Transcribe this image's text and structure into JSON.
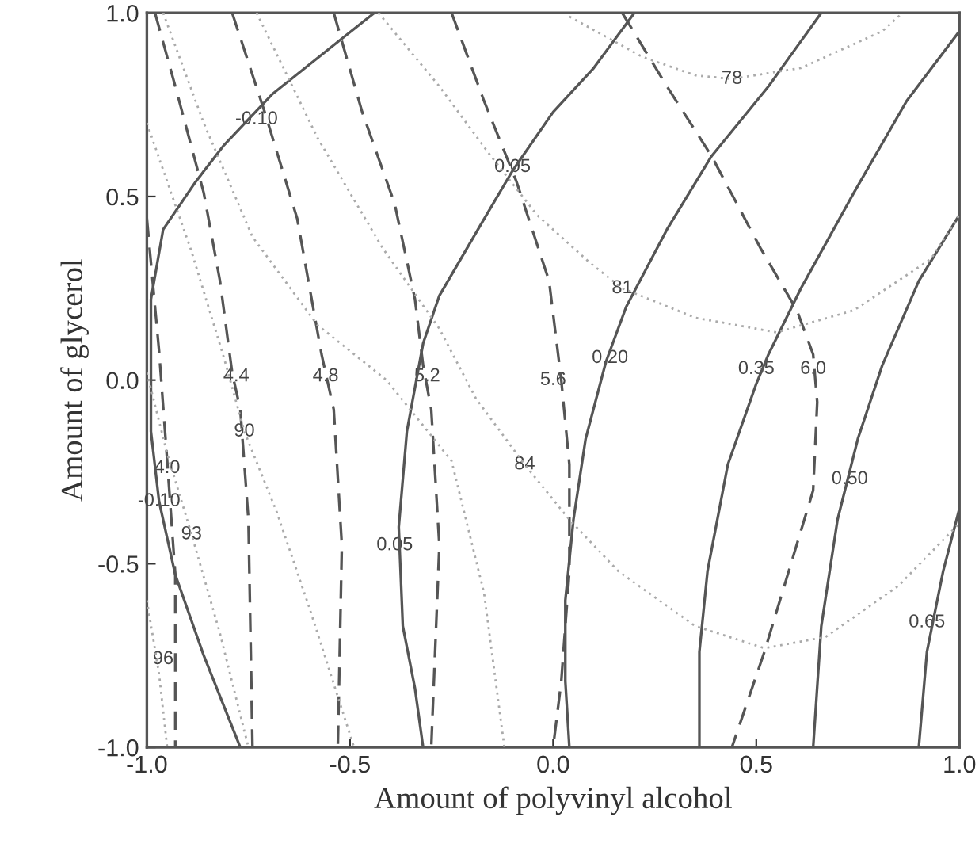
{
  "chart_data": {
    "type": "line",
    "xlabel": "Amount of polyvinyl alcohol",
    "ylabel": "Amount of glycerol",
    "xlim": [
      -1.0,
      1.0
    ],
    "ylim": [
      -1.0,
      1.0
    ],
    "xticks": [
      {
        "value": -1.0,
        "label": "-1.0"
      },
      {
        "value": -0.5,
        "label": "-0.5"
      },
      {
        "value": 0.0,
        "label": "0.0"
      },
      {
        "value": 0.5,
        "label": "0.5"
      },
      {
        "value": 1.0,
        "label": "1.0"
      }
    ],
    "yticks": [
      {
        "value": -1.0,
        "label": "-1.0"
      },
      {
        "value": -0.5,
        "label": "-0.5"
      },
      {
        "value": 0.0,
        "label": "0.0"
      },
      {
        "value": 0.5,
        "label": "0.5"
      },
      {
        "value": 1.0,
        "label": "1.0"
      }
    ],
    "grid": false,
    "marker": "none",
    "series": [
      {
        "color": "#555555",
        "line_style": "solid",
        "x": [
          -0.44,
          -0.52,
          -0.69,
          -0.81,
          -0.88,
          -0.96,
          -0.99,
          -0.99,
          -0.99,
          -0.97,
          -0.93,
          -0.86,
          -0.77
        ],
        "values": [
          1.0,
          0.93,
          0.78,
          0.64,
          0.54,
          0.41,
          0.22,
          0.04,
          -0.14,
          -0.33,
          -0.53,
          -0.75,
          -1.0
        ]
      },
      {
        "color": "#555555",
        "line_style": "solid",
        "x": [
          0.2,
          0.1,
          0.0,
          -0.1,
          -0.18,
          -0.28,
          -0.32,
          -0.36,
          -0.38,
          -0.37,
          -0.34,
          -0.32
        ],
        "values": [
          1.0,
          0.85,
          0.73,
          0.57,
          0.42,
          0.23,
          0.1,
          -0.14,
          -0.4,
          -0.67,
          -0.84,
          -1.0
        ]
      },
      {
        "color": "#555555",
        "line_style": "solid",
        "x": [
          0.66,
          0.53,
          0.39,
          0.28,
          0.18,
          0.13,
          0.08,
          0.05,
          0.03,
          0.03,
          0.04
        ],
        "values": [
          1.0,
          0.8,
          0.61,
          0.41,
          0.2,
          0.05,
          -0.16,
          -0.38,
          -0.6,
          -0.82,
          -1.0
        ]
      },
      {
        "color": "#555555",
        "line_style": "solid",
        "x": [
          1.0,
          0.87,
          0.74,
          0.61,
          0.53,
          0.5,
          0.43,
          0.38,
          0.36,
          0.36
        ],
        "values": [
          0.95,
          0.76,
          0.51,
          0.25,
          0.07,
          -0.01,
          -0.23,
          -0.52,
          -0.74,
          -1.0
        ]
      },
      {
        "color": "#555555",
        "line_style": "solid",
        "x": [
          1.0,
          0.9,
          0.81,
          0.75,
          0.7,
          0.66,
          0.64
        ],
        "values": [
          0.45,
          0.27,
          0.04,
          -0.16,
          -0.38,
          -0.67,
          -1.0
        ]
      },
      {
        "color": "#555555",
        "line_style": "solid",
        "x": [
          1.0,
          0.96,
          0.92,
          0.9
        ],
        "values": [
          -0.35,
          -0.52,
          -0.74,
          -1.0
        ]
      },
      {
        "color": "#555555",
        "line_style": "dashed",
        "x": [
          -1.0,
          -0.97,
          -0.95,
          -0.93,
          -0.93
        ],
        "values": [
          0.44,
          0.08,
          -0.22,
          -0.53,
          -1.0
        ]
      },
      {
        "color": "#555555",
        "line_style": "dashed",
        "x": [
          -0.98,
          -0.93,
          -0.86,
          -0.82,
          -0.79,
          -0.77,
          -0.75,
          -0.74
        ],
        "values": [
          1.0,
          0.8,
          0.51,
          0.27,
          0.02,
          -0.08,
          -0.38,
          -1.0
        ]
      },
      {
        "color": "#555555",
        "line_style": "dashed",
        "x": [
          -0.79,
          -0.71,
          -0.63,
          -0.57,
          -0.54,
          -0.52,
          -0.53
        ],
        "values": [
          1.0,
          0.73,
          0.44,
          0.07,
          -0.08,
          -0.45,
          -1.0
        ]
      },
      {
        "color": "#555555",
        "line_style": "dashed",
        "x": [
          -0.54,
          -0.47,
          -0.39,
          -0.34,
          -0.32,
          -0.3,
          -0.28,
          -0.3
        ],
        "values": [
          1.0,
          0.73,
          0.48,
          0.22,
          0.04,
          -0.08,
          -0.45,
          -1.0
        ]
      },
      {
        "color": "#555555",
        "line_style": "dashed",
        "x": [
          -0.25,
          -0.17,
          -0.09,
          -0.01,
          0.02,
          0.04,
          0.04,
          0.02,
          0.0
        ],
        "values": [
          1.0,
          0.76,
          0.54,
          0.27,
          0.0,
          -0.23,
          -0.52,
          -0.82,
          -1.0
        ]
      },
      {
        "color": "#555555",
        "line_style": "dashed",
        "x": [
          0.17,
          0.28,
          0.39,
          0.51,
          0.6,
          0.64,
          0.65,
          0.64,
          0.58,
          0.52,
          0.44
        ],
        "values": [
          1.0,
          0.8,
          0.61,
          0.36,
          0.19,
          0.07,
          -0.06,
          -0.3,
          -0.52,
          -0.74,
          -1.0
        ]
      },
      {
        "color": "#aaaaaa",
        "line_style": "dotted",
        "x": [
          0.04,
          0.22,
          0.35,
          0.44,
          0.61,
          0.81,
          0.86
        ],
        "values": [
          0.99,
          0.88,
          0.83,
          0.82,
          0.85,
          0.95,
          1.0
        ]
      },
      {
        "color": "#aaaaaa",
        "line_style": "dotted",
        "x": [
          -0.43,
          -0.28,
          -0.16,
          -0.04,
          0.09,
          0.17,
          0.35,
          0.55,
          0.74,
          0.93,
          1.0
        ],
        "values": [
          1.0,
          0.8,
          0.62,
          0.45,
          0.32,
          0.25,
          0.17,
          0.13,
          0.19,
          0.33,
          0.45
        ]
      },
      {
        "color": "#aaaaaa",
        "line_style": "dotted",
        "x": [
          -0.73,
          -0.58,
          -0.42,
          -0.28,
          -0.19,
          -0.07,
          0.04,
          0.16,
          0.35,
          0.52,
          0.67,
          0.85,
          1.0
        ],
        "values": [
          1.0,
          0.66,
          0.36,
          0.14,
          -0.05,
          -0.23,
          -0.38,
          -0.52,
          -0.67,
          -0.73,
          -0.7,
          -0.56,
          -0.39
        ]
      },
      {
        "color": "#aaaaaa",
        "line_style": "dotted",
        "x": [
          -0.96,
          -0.86,
          -0.74,
          -0.58,
          -0.41,
          -0.25,
          -0.17,
          -0.12
        ],
        "values": [
          1.0,
          0.7,
          0.39,
          0.15,
          0.0,
          -0.22,
          -0.58,
          -1.0
        ]
      },
      {
        "color": "#aaaaaa",
        "line_style": "dotted",
        "x": [
          -1.0,
          -0.89,
          -0.81,
          -0.76,
          -0.68,
          -0.6,
          -0.49
        ],
        "values": [
          0.7,
          0.35,
          0.06,
          -0.14,
          -0.36,
          -0.62,
          -1.0
        ]
      },
      {
        "color": "#aaaaaa",
        "line_style": "dotted",
        "x": [
          -1.0,
          -0.95,
          -0.89,
          -0.82,
          -0.75
        ],
        "values": [
          0.02,
          -0.2,
          -0.42,
          -0.69,
          -1.0
        ]
      },
      {
        "color": "#aaaaaa",
        "line_style": "dotted",
        "x": [
          -1.0,
          -0.97,
          -0.95
        ],
        "values": [
          -0.6,
          -0.8,
          -1.0
        ]
      }
    ],
    "annotations": [
      {
        "text": "-0.10",
        "x": -0.73,
        "y": 0.71
      },
      {
        "text": "0.05",
        "x": -0.1,
        "y": 0.58
      },
      {
        "text": "0.20",
        "x": 0.14,
        "y": 0.06
      },
      {
        "text": "0.35",
        "x": 0.5,
        "y": 0.03
      },
      {
        "text": "6.0",
        "x": 0.64,
        "y": 0.03
      },
      {
        "text": "81",
        "x": 0.17,
        "y": 0.25
      },
      {
        "text": "78",
        "x": 0.44,
        "y": 0.82
      },
      {
        "text": "4.4",
        "x": -0.78,
        "y": 0.01
      },
      {
        "text": "4.8",
        "x": -0.56,
        "y": 0.01
      },
      {
        "text": "5.2",
        "x": -0.31,
        "y": 0.01
      },
      {
        "text": "5.6",
        "x": 0.0,
        "y": 0.0
      },
      {
        "text": "90",
        "x": -0.76,
        "y": -0.14
      },
      {
        "text": "4.0",
        "x": -0.95,
        "y": -0.24
      },
      {
        "text": "-0.10",
        "x": -0.97,
        "y": -0.33
      },
      {
        "text": "93",
        "x": -0.89,
        "y": -0.42
      },
      {
        "text": "84",
        "x": -0.07,
        "y": -0.23
      },
      {
        "text": "0.05",
        "x": -0.39,
        "y": -0.45
      },
      {
        "text": "0.50",
        "x": 0.73,
        "y": -0.27
      },
      {
        "text": "0.65",
        "x": 0.92,
        "y": -0.66
      },
      {
        "text": "96",
        "x": -0.96,
        "y": -0.76
      }
    ]
  }
}
